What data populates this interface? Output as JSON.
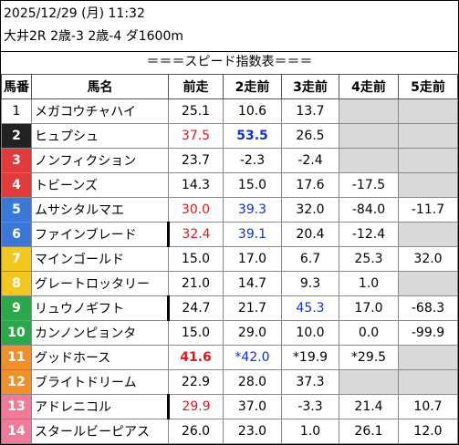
{
  "header": {
    "datetime": "2025/12/29 (月) 11:32",
    "race": "大井2R 2歳-3 2歳-4 ダ1600m"
  },
  "table_title": "＝＝＝スピード指数表＝＝＝",
  "columns": [
    "馬番",
    "馬名",
    "前走",
    "2走前",
    "3走前",
    "4走前",
    "5走前"
  ],
  "rows": [
    {
      "num": "1",
      "name": "メガコウチャハイ",
      "v": [
        "25.1",
        "10.6",
        "13.7",
        "",
        ""
      ],
      "gray": [
        false,
        false,
        false,
        true,
        true
      ],
      "bg": "#ffffff",
      "fg": "#000000"
    },
    {
      "num": "2",
      "name": "ヒュプシュ",
      "v": [
        "37.5",
        "53.5",
        "26.5",
        "",
        ""
      ],
      "gray": [
        false,
        false,
        false,
        true,
        true
      ],
      "bg": "#222222",
      "fg": "#ffffff"
    },
    {
      "num": "3",
      "name": "ノンフィクション",
      "v": [
        "23.7",
        "-2.3",
        "-2.4",
        "",
        ""
      ],
      "gray": [
        false,
        false,
        false,
        true,
        true
      ],
      "bg": "#e23a3a",
      "fg": "#ffffff"
    },
    {
      "num": "4",
      "name": "トビーンズ",
      "v": [
        "14.3",
        "15.0",
        "17.6",
        "-17.5",
        ""
      ],
      "gray": [
        false,
        false,
        false,
        false,
        true
      ],
      "bg": "#e23a3a",
      "fg": "#ffffff"
    },
    {
      "num": "5",
      "name": "ムサシタルマエ",
      "v": [
        "30.0",
        "39.3",
        "32.0",
        "-84.0",
        "-11.7"
      ],
      "gray": [
        false,
        false,
        false,
        false,
        false
      ],
      "bg": "#3a78d8",
      "fg": "#ffffff"
    },
    {
      "num": "6",
      "name": "ファインブレード",
      "v": [
        "32.4",
        "39.1",
        "20.4",
        "-12.4",
        ""
      ],
      "gray": [
        false,
        false,
        false,
        false,
        true
      ],
      "bg": "#3a78d8",
      "fg": "#ffffff"
    },
    {
      "num": "7",
      "name": "マインゴールド",
      "v": [
        "15.0",
        "17.0",
        "6.7",
        "25.3",
        "32.0"
      ],
      "gray": [
        false,
        false,
        false,
        false,
        false
      ],
      "bg": "#f2c820",
      "fg": "#ffffff"
    },
    {
      "num": "8",
      "name": "グレートロッタリー",
      "v": [
        "21.0",
        "14.7",
        "9.3",
        "1.0",
        ""
      ],
      "gray": [
        false,
        false,
        false,
        false,
        true
      ],
      "bg": "#f2c820",
      "fg": "#ffffff"
    },
    {
      "num": "9",
      "name": "リュウノギフト",
      "v": [
        "24.7",
        "21.7",
        "45.3",
        "17.0",
        "-68.3"
      ],
      "gray": [
        false,
        false,
        false,
        false,
        false
      ],
      "bg": "#2aa84a",
      "fg": "#ffffff"
    },
    {
      "num": "10",
      "name": "カンノンピョンタ",
      "v": [
        "15.0",
        "29.0",
        "10.0",
        "0.0",
        "-99.9"
      ],
      "gray": [
        false,
        false,
        false,
        false,
        false
      ],
      "bg": "#2aa84a",
      "fg": "#ffffff"
    },
    {
      "num": "11",
      "name": "グッドホース",
      "v": [
        "41.6",
        "*42.0",
        "*19.9",
        "*29.5",
        ""
      ],
      "gray": [
        false,
        false,
        false,
        false,
        true
      ],
      "bg": "#f0902a",
      "fg": "#ffffff"
    },
    {
      "num": "12",
      "name": "ブライトドリーム",
      "v": [
        "22.9",
        "28.0",
        "37.3",
        "",
        ""
      ],
      "gray": [
        false,
        false,
        false,
        true,
        true
      ],
      "bg": "#f0902a",
      "fg": "#ffffff"
    },
    {
      "num": "13",
      "name": "アドレニコル",
      "v": [
        "29.9",
        "37.0",
        "-3.3",
        "21.4",
        "10.7"
      ],
      "gray": [
        false,
        false,
        false,
        false,
        false
      ],
      "bg": "#f07a98",
      "fg": "#ffffff"
    },
    {
      "num": "14",
      "name": "スタールビーピアス",
      "v": [
        "26.0",
        "23.0",
        "1.0",
        "26.1",
        "12.0"
      ],
      "gray": [
        false,
        false,
        false,
        false,
        false
      ],
      "bg": "#f07a98",
      "fg": "#ffffff"
    }
  ],
  "highlights": {
    "red": [
      [
        1,
        0
      ],
      [
        4,
        0
      ],
      [
        5,
        0
      ],
      [
        10,
        0
      ],
      [
        12,
        0
      ]
    ],
    "blue": [
      [
        1,
        1
      ],
      [
        4,
        1
      ],
      [
        5,
        1
      ],
      [
        8,
        2
      ],
      [
        10,
        1
      ]
    ],
    "bold": [
      [
        1,
        1
      ],
      [
        10,
        0
      ]
    ]
  },
  "name_bar_rows": [
    5,
    8,
    12
  ]
}
